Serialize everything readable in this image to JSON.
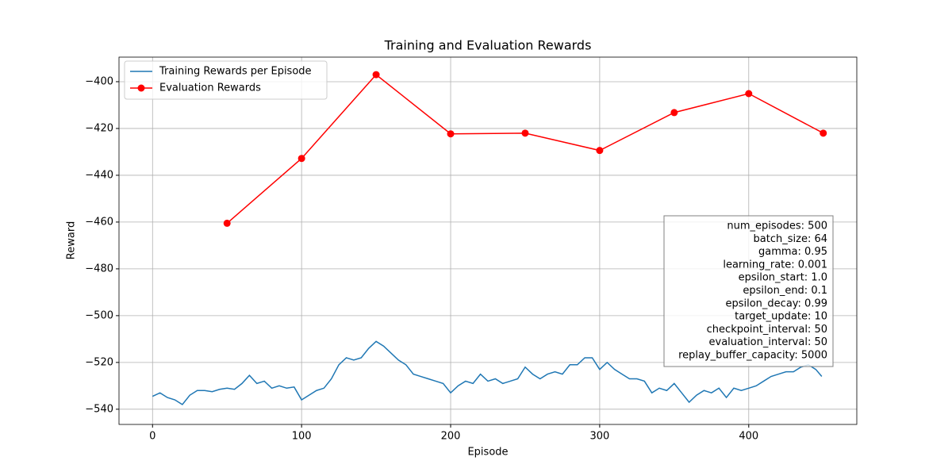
{
  "chart_data": {
    "type": "line",
    "title": "Training and Evaluation Rewards",
    "xlabel": "Episode",
    "ylabel": "Reward",
    "xlim": [
      -22.5,
      472.5
    ],
    "ylim": [
      -546.5,
      -389.5
    ],
    "xticks": [
      0,
      100,
      200,
      300,
      400
    ],
    "yticks": [
      {
        "value": -540,
        "label": "−540"
      },
      {
        "value": -520,
        "label": "−520"
      },
      {
        "value": -500,
        "label": "−500"
      },
      {
        "value": -480,
        "label": "−480"
      },
      {
        "value": -460,
        "label": "−460"
      },
      {
        "value": -440,
        "label": "−440"
      },
      {
        "value": -420,
        "label": "−420"
      },
      {
        "value": -400,
        "label": "−400"
      }
    ],
    "grid": true,
    "legend": "upper left",
    "series": [
      {
        "name": "Training Rewards per Episode",
        "color": "#1f77b4",
        "marker": false,
        "x": [
          0,
          5,
          10,
          15,
          20,
          25,
          30,
          35,
          40,
          45,
          50,
          55,
          60,
          65,
          70,
          75,
          80,
          85,
          90,
          95,
          100,
          105,
          110,
          115,
          120,
          125,
          130,
          135,
          140,
          145,
          150,
          155,
          160,
          165,
          170,
          175,
          180,
          185,
          190,
          195,
          200,
          205,
          210,
          215,
          220,
          225,
          230,
          235,
          240,
          245,
          250,
          255,
          260,
          265,
          270,
          275,
          280,
          285,
          290,
          295,
          300,
          305,
          310,
          315,
          320,
          325,
          330,
          335,
          340,
          345,
          350,
          355,
          360,
          365,
          370,
          375,
          380,
          385,
          390,
          395,
          400,
          405,
          410,
          415,
          420,
          425,
          430,
          435,
          440,
          445,
          449
        ],
        "values": [
          -534.5,
          -533,
          -535,
          -536,
          -538,
          -534,
          -532,
          -532,
          -532.5,
          -531.5,
          -531,
          -531.5,
          -529,
          -525.5,
          -529,
          -528,
          -531,
          -530,
          -531,
          -530.5,
          -536,
          -534,
          -532,
          -531,
          -527,
          -521,
          -518,
          -519,
          -518,
          -514,
          -511,
          -513,
          -516,
          -519,
          -521,
          -525,
          -526,
          -527,
          -528,
          -529,
          -533,
          -530,
          -528,
          -529,
          -525,
          -528,
          -527,
          -529,
          -528,
          -527,
          -522,
          -525,
          -527,
          -525,
          -524,
          -525,
          -521,
          -521,
          -518,
          -518,
          -523,
          -520,
          -523,
          -525,
          -527,
          -527,
          -528,
          -533,
          -531,
          -532,
          -529,
          -533,
          -537,
          -534,
          -532,
          -533,
          -531,
          -535,
          -531,
          -532,
          -531,
          -530,
          -528,
          -526,
          -525,
          -524,
          -524,
          -522,
          -521,
          -523,
          -526
        ]
      },
      {
        "name": "Evaluation Rewards",
        "color": "#ff0000",
        "marker": true,
        "x": [
          50,
          100,
          150,
          200,
          250,
          300,
          350,
          400,
          450
        ],
        "values": [
          -460.5,
          -432.8,
          -397,
          -422.3,
          -422,
          -429.4,
          -413.2,
          -405.1,
          -422
        ]
      }
    ],
    "annotation": [
      "num_episodes: 500",
      "batch_size: 64",
      "gamma: 0.95",
      "learning_rate: 0.001",
      "epsilon_start: 1.0",
      "epsilon_end: 0.1",
      "epsilon_decay: 0.99",
      "target_update: 10",
      "checkpoint_interval: 50",
      "evaluation_interval: 50",
      "replay_buffer_capacity: 5000"
    ]
  }
}
